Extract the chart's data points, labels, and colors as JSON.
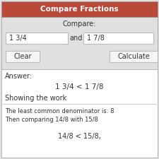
{
  "title": "Compare Fractions",
  "title_bg": "#b94a3a",
  "title_color": "#ffffff",
  "bg_color": "#e0e0e0",
  "panel_bg": "#ffffff",
  "compare_label": "Compare:",
  "input1": "1 3/4",
  "input2": "1 7/8",
  "and_label": "and",
  "btn_clear": "Clear",
  "btn_calc": "Calculate",
  "answer_label": "Answer:",
  "answer_value": "1 3/4 < 1 7/8",
  "showing_label": "Showing the work",
  "line1": "The least common denominator is: 8",
  "line2": "Then comparing 14/8 with 15/8",
  "line3": "14/8 < 15/8,",
  "border_color": "#bbbbbb",
  "text_color": "#333333"
}
